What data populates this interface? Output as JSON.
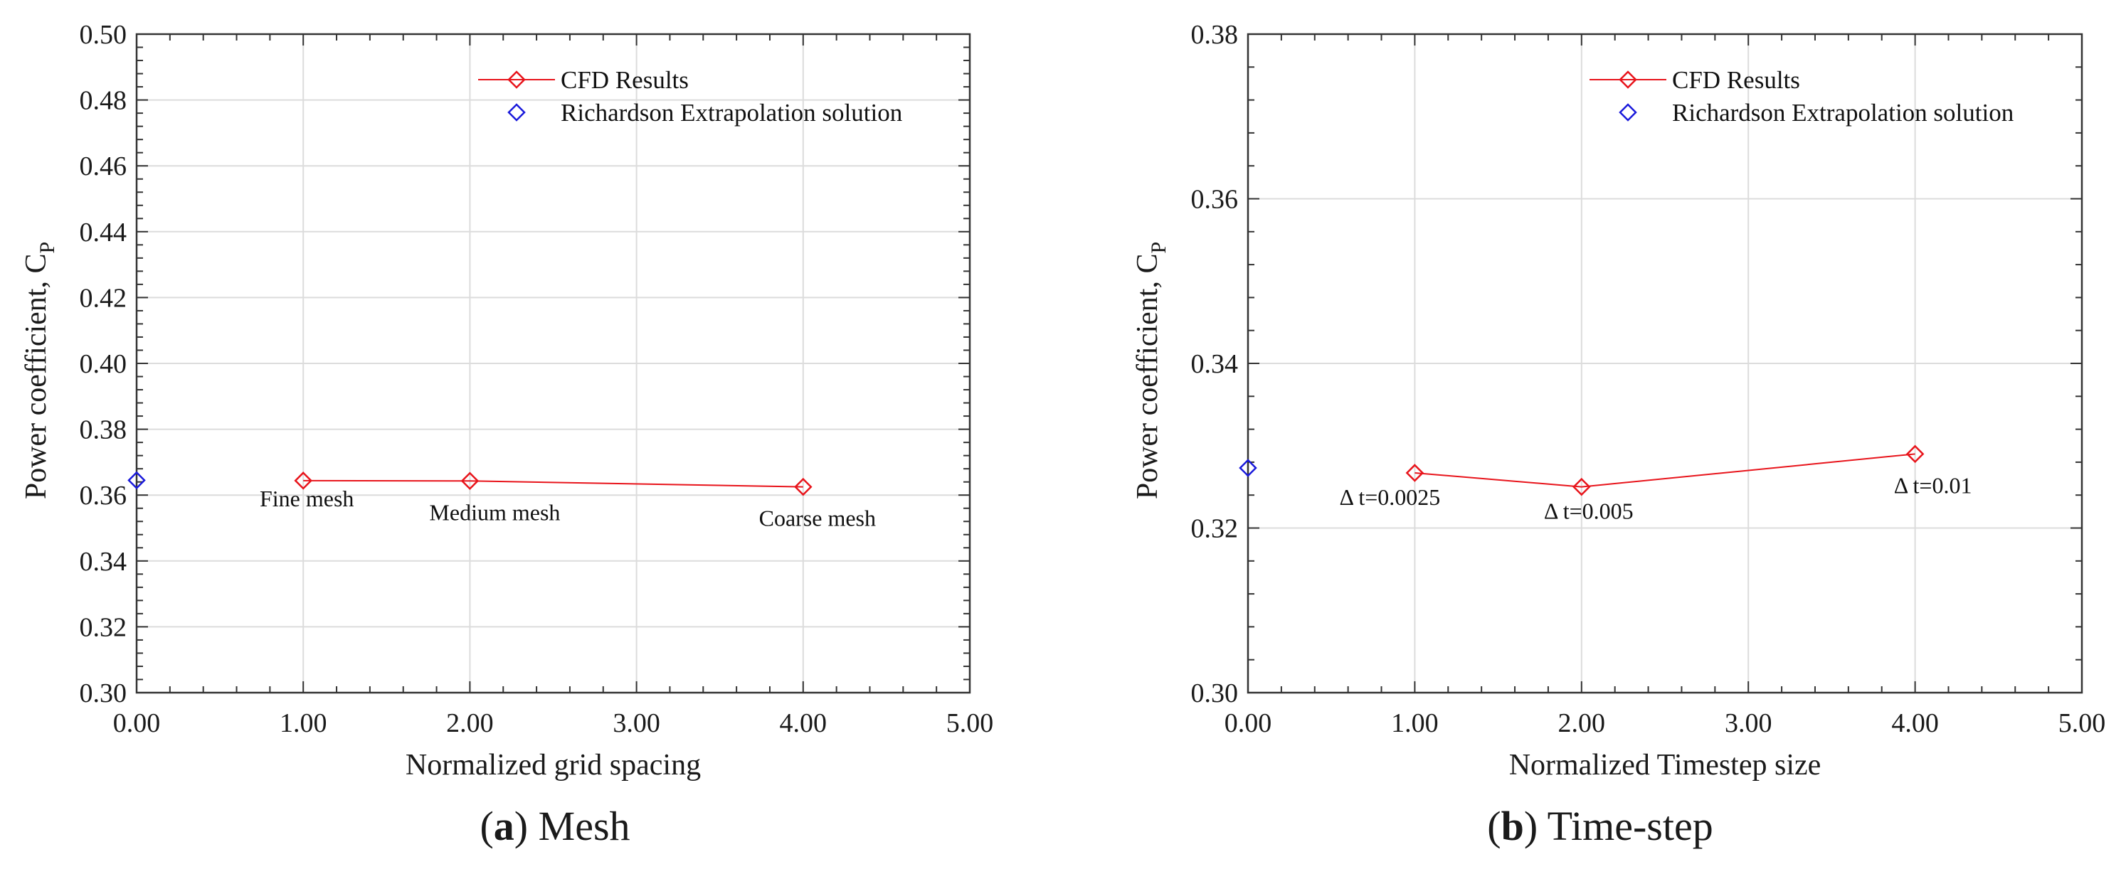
{
  "chart_data": [
    {
      "type": "line",
      "panel_id": "a",
      "caption_letter": "a",
      "caption_text": " Mesh",
      "xlabel": "Normalized grid spacing",
      "ylabel": "Power coefficient, C",
      "ylabel_sub": "P",
      "xlim": [
        0,
        5
      ],
      "ylim": [
        0.3,
        0.5
      ],
      "xticks": [
        0,
        1,
        2,
        3,
        4,
        5
      ],
      "xtick_labels": [
        "0.00",
        "1.00",
        "2.00",
        "3.00",
        "4.00",
        "5.00"
      ],
      "yticks": [
        0.3,
        0.32,
        0.34,
        0.36,
        0.38,
        0.4,
        0.42,
        0.44,
        0.46,
        0.48,
        0.5
      ],
      "ytick_labels": [
        "0.30",
        "0.32",
        "0.34",
        "0.36",
        "0.38",
        "0.40",
        "0.42",
        "0.44",
        "0.46",
        "0.48",
        "0.50"
      ],
      "grid": true,
      "legend_position": "top-right",
      "series": [
        {
          "name": "CFD Results",
          "color": "#e8141b",
          "marker": "diamond",
          "line": true,
          "x": [
            1,
            2,
            4
          ],
          "y": [
            0.3644,
            0.3643,
            0.3625
          ]
        },
        {
          "name": "Richardson Extrapolation solution",
          "color": "#1a1adb",
          "marker": "diamond",
          "line": false,
          "x": [
            0
          ],
          "y": [
            0.3645
          ]
        }
      ],
      "annotations": [
        {
          "text": "Fine mesh",
          "x": 1,
          "y": 0.3644
        },
        {
          "text": "Medium mesh",
          "x": 2,
          "y": 0.3643
        },
        {
          "text": "Coarse mesh",
          "x": 4,
          "y": 0.3625
        }
      ]
    },
    {
      "type": "line",
      "panel_id": "b",
      "caption_letter": "b",
      "caption_text": " Time-step",
      "xlabel": "Normalized Timestep size",
      "ylabel": "Power coefficient, C",
      "ylabel_sub": "P",
      "xlim": [
        0,
        5
      ],
      "ylim": [
        0.3,
        0.38
      ],
      "xticks": [
        0,
        1,
        2,
        3,
        4,
        5
      ],
      "xtick_labels": [
        "0.00",
        "1.00",
        "2.00",
        "3.00",
        "4.00",
        "5.00"
      ],
      "yticks": [
        0.3,
        0.32,
        0.34,
        0.36,
        0.38
      ],
      "ytick_labels": [
        "0.30",
        "0.32",
        "0.34",
        "0.36",
        "0.38"
      ],
      "grid": true,
      "legend_position": "top-right",
      "series": [
        {
          "name": "CFD Results",
          "color": "#e8141b",
          "marker": "diamond",
          "line": true,
          "x": [
            1,
            2,
            4
          ],
          "y": [
            0.3267,
            0.325,
            0.329
          ]
        },
        {
          "name": "Richardson Extrapolation solution",
          "color": "#1a1adb",
          "marker": "diamond",
          "line": false,
          "x": [
            0
          ],
          "y": [
            0.3273
          ]
        }
      ],
      "annotations": [
        {
          "text": "Δ t=0.0025",
          "x": 1,
          "y": 0.3267
        },
        {
          "text": "Δ t=0.005",
          "x": 2,
          "y": 0.325
        },
        {
          "text": "Δ t=0.01",
          "x": 4,
          "y": 0.329
        }
      ]
    }
  ]
}
